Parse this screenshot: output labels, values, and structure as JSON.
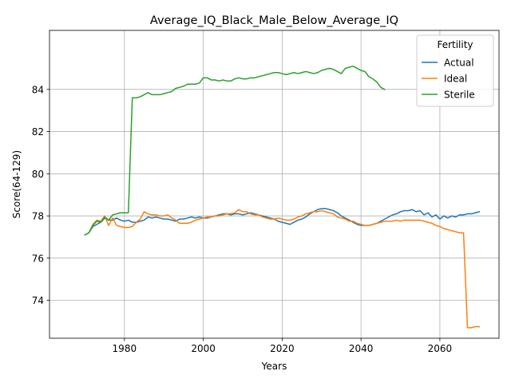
{
  "chart_data": {
    "type": "line",
    "title": "Average_IQ_Black_Male_Below_Average_IQ",
    "xlabel": "Years",
    "ylabel": "Score(64-129)",
    "xlim": [
      1961,
      2075
    ],
    "ylim": [
      72.2,
      86.8
    ],
    "xticks": [
      1980,
      2000,
      2020,
      2040,
      2060
    ],
    "yticks": [
      74,
      76,
      78,
      80,
      82,
      84
    ],
    "grid": true,
    "legend": {
      "title": "Fertility",
      "placement": "top-right"
    },
    "series": [
      {
        "name": "Actual",
        "color": "#1f77b4",
        "x": [
          1970,
          1971,
          1972,
          1973,
          1974,
          1975,
          1976,
          1977,
          1978,
          1979,
          1980,
          1981,
          1982,
          1983,
          1984,
          1985,
          1986,
          1987,
          1988,
          1989,
          1990,
          1991,
          1992,
          1993,
          1994,
          1995,
          1996,
          1997,
          1998,
          1999,
          2000,
          2001,
          2002,
          2003,
          2004,
          2005,
          2006,
          2007,
          2008,
          2009,
          2010,
          2011,
          2012,
          2013,
          2014,
          2015,
          2016,
          2017,
          2018,
          2019,
          2020,
          2021,
          2022,
          2023,
          2024,
          2025,
          2026,
          2027,
          2028,
          2029,
          2030,
          2031,
          2032,
          2033,
          2034,
          2035,
          2036,
          2037,
          2038,
          2039,
          2040,
          2041,
          2042,
          2043,
          2044,
          2045,
          2046,
          2047,
          2048,
          2049,
          2050,
          2051,
          2052,
          2053,
          2054,
          2055,
          2056,
          2057,
          2058,
          2059,
          2060,
          2061,
          2062,
          2063,
          2064,
          2065,
          2066,
          2067,
          2068,
          2069,
          2070
        ],
        "values": [
          77.1,
          77.2,
          77.5,
          77.6,
          77.7,
          77.9,
          77.8,
          77.8,
          77.9,
          77.8,
          77.75,
          77.8,
          77.7,
          77.7,
          77.75,
          77.8,
          77.95,
          77.9,
          77.95,
          77.9,
          77.85,
          77.85,
          77.8,
          77.75,
          77.85,
          77.85,
          77.9,
          77.95,
          77.9,
          77.95,
          77.9,
          77.9,
          77.95,
          78.0,
          78.05,
          78.1,
          78.1,
          78.05,
          78.1,
          78.1,
          78.05,
          78.1,
          78.15,
          78.1,
          78.05,
          78.0,
          77.95,
          77.9,
          77.85,
          77.75,
          77.7,
          77.65,
          77.6,
          77.7,
          77.8,
          77.85,
          77.95,
          78.1,
          78.2,
          78.3,
          78.35,
          78.35,
          78.3,
          78.25,
          78.15,
          78.0,
          77.9,
          77.8,
          77.7,
          77.6,
          77.55,
          77.55,
          77.55,
          77.6,
          77.65,
          77.75,
          77.85,
          77.95,
          78.05,
          78.1,
          78.2,
          78.25,
          78.25,
          78.3,
          78.2,
          78.25,
          78.05,
          78.15,
          77.95,
          78.05,
          77.85,
          78.0,
          77.9,
          78.0,
          77.95,
          78.05,
          78.05,
          78.1,
          78.1,
          78.15,
          78.2
        ]
      },
      {
        "name": "Ideal",
        "color": "#ff7f0e",
        "x": [
          1970,
          1971,
          1972,
          1973,
          1974,
          1975,
          1976,
          1977,
          1978,
          1979,
          1980,
          1981,
          1982,
          1983,
          1984,
          1985,
          1986,
          1987,
          1988,
          1989,
          1990,
          1991,
          1992,
          1993,
          1994,
          1995,
          1996,
          1997,
          1998,
          1999,
          2000,
          2001,
          2002,
          2003,
          2004,
          2005,
          2006,
          2007,
          2008,
          2009,
          2010,
          2011,
          2012,
          2013,
          2014,
          2015,
          2016,
          2017,
          2018,
          2019,
          2020,
          2021,
          2022,
          2023,
          2024,
          2025,
          2026,
          2027,
          2028,
          2029,
          2030,
          2031,
          2032,
          2033,
          2034,
          2035,
          2036,
          2037,
          2038,
          2039,
          2040,
          2041,
          2042,
          2043,
          2044,
          2045,
          2046,
          2047,
          2048,
          2049,
          2050,
          2051,
          2052,
          2053,
          2054,
          2055,
          2056,
          2057,
          2058,
          2059,
          2060,
          2061,
          2062,
          2063,
          2064,
          2065,
          2066,
          2067,
          2068,
          2069,
          2070
        ],
        "values": [
          77.1,
          77.2,
          77.6,
          77.8,
          77.75,
          78.0,
          77.55,
          77.9,
          77.55,
          77.5,
          77.45,
          77.45,
          77.5,
          77.7,
          77.85,
          78.2,
          78.1,
          78.05,
          78.05,
          78.0,
          78.0,
          78.05,
          77.9,
          77.8,
          77.65,
          77.65,
          77.65,
          77.7,
          77.8,
          77.85,
          77.9,
          77.95,
          77.95,
          78.0,
          78.0,
          78.05,
          78.1,
          78.1,
          78.15,
          78.3,
          78.2,
          78.2,
          78.1,
          78.05,
          78.05,
          77.95,
          77.9,
          77.85,
          77.85,
          77.9,
          77.85,
          77.8,
          77.8,
          77.85,
          77.95,
          78.0,
          78.1,
          78.15,
          78.2,
          78.2,
          78.25,
          78.2,
          78.15,
          78.1,
          77.95,
          77.9,
          77.85,
          77.75,
          77.75,
          77.65,
          77.6,
          77.55,
          77.55,
          77.6,
          77.65,
          77.7,
          77.75,
          77.75,
          77.75,
          77.8,
          77.75,
          77.8,
          77.8,
          77.8,
          77.8,
          77.8,
          77.75,
          77.7,
          77.65,
          77.55,
          77.5,
          77.4,
          77.35,
          77.3,
          77.25,
          77.2,
          77.2,
          72.7,
          72.7,
          72.75,
          72.75
        ]
      },
      {
        "name": "Sterile",
        "color": "#2ca02c",
        "x": [
          1970,
          1971,
          1972,
          1973,
          1974,
          1975,
          1976,
          1977,
          1978,
          1979,
          1980,
          1981,
          1982,
          1983,
          1984,
          1985,
          1986,
          1987,
          1988,
          1989,
          1990,
          1991,
          1992,
          1993,
          1994,
          1995,
          1996,
          1997,
          1998,
          1999,
          2000,
          2001,
          2002,
          2003,
          2004,
          2005,
          2006,
          2007,
          2008,
          2009,
          2010,
          2011,
          2012,
          2013,
          2014,
          2015,
          2016,
          2017,
          2018,
          2019,
          2020,
          2021,
          2022,
          2023,
          2024,
          2025,
          2026,
          2027,
          2028,
          2029,
          2030,
          2031,
          2032,
          2033,
          2034,
          2035,
          2036,
          2037,
          2038,
          2039,
          2040,
          2041,
          2042,
          2043,
          2044,
          2045,
          2046
        ],
        "values": [
          77.1,
          77.2,
          77.55,
          77.75,
          77.7,
          77.95,
          77.8,
          78.05,
          78.1,
          78.15,
          78.15,
          78.15,
          83.6,
          83.6,
          83.65,
          83.75,
          83.85,
          83.75,
          83.75,
          83.75,
          83.8,
          83.85,
          83.9,
          84.05,
          84.1,
          84.15,
          84.25,
          84.25,
          84.25,
          84.3,
          84.55,
          84.55,
          84.45,
          84.45,
          84.4,
          84.45,
          84.4,
          84.4,
          84.5,
          84.55,
          84.5,
          84.5,
          84.55,
          84.55,
          84.6,
          84.65,
          84.7,
          84.75,
          84.8,
          84.8,
          84.75,
          84.7,
          84.75,
          84.8,
          84.75,
          84.8,
          84.85,
          84.8,
          84.75,
          84.8,
          84.9,
          84.95,
          85.0,
          84.95,
          84.85,
          84.75,
          85.0,
          85.05,
          85.1,
          85.0,
          84.9,
          84.85,
          84.6,
          84.5,
          84.35,
          84.1,
          84.0
        ]
      }
    ]
  }
}
